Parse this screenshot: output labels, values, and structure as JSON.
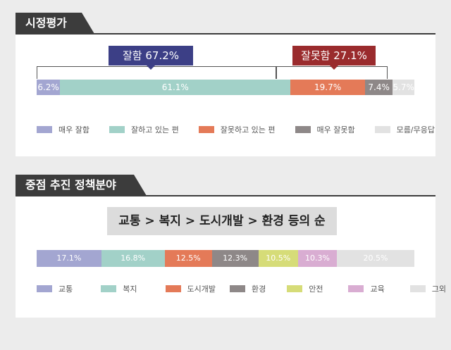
{
  "sections": {
    "evaluation_title": "시정평가",
    "focus_title": "중점 추진 정책분야"
  },
  "callouts": {
    "good": "잘함 67.2%",
    "bad": "잘못함 27.1%"
  },
  "headline": "교통 > 복지 > 도시개발 > 환경 등의 순",
  "chart_data": [
    {
      "type": "bar",
      "orientation": "horizontal-stacked",
      "categories": [
        "매우 잘함",
        "잘하고 있는 편",
        "잘못하고 있는 편",
        "매우 잘못함",
        "모름/무응답"
      ],
      "values": [
        6.2,
        61.1,
        19.7,
        7.4,
        5.7
      ],
      "labels": [
        "6.2%",
        "61.1%",
        "19.7%",
        "7.4%",
        "5.7%"
      ],
      "colors": [
        "#a3a6d1",
        "#a2d1c8",
        "#e47a58",
        "#8e8888",
        "#e2e2e2"
      ],
      "legend_position": "bottom"
    },
    {
      "type": "bar",
      "orientation": "horizontal-stacked",
      "categories": [
        "교통",
        "복지",
        "도시개발",
        "환경",
        "안전",
        "교육",
        "그외"
      ],
      "values": [
        17.1,
        16.8,
        12.5,
        12.3,
        10.5,
        10.3,
        20.5
      ],
      "labels": [
        "17.1%",
        "16.8%",
        "12.5%",
        "12.3%",
        "10.5%",
        "10.3%",
        "20.5%"
      ],
      "colors": [
        "#a3a6d1",
        "#a2d1c8",
        "#e47a58",
        "#8e8888",
        "#d6dc78",
        "#d9add2",
        "#e2e2e2"
      ],
      "legend_position": "bottom"
    }
  ]
}
